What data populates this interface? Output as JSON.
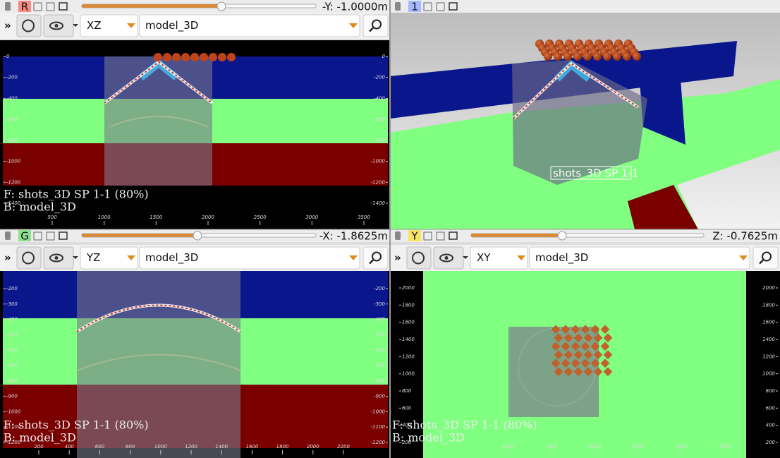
{
  "panels": [
    {
      "badge": "R",
      "position": "-Y: -1.0000m",
      "more": "»",
      "plane": "XZ",
      "model": "model_3D",
      "overlay": [
        "F: shots_3D SP 1-1 (80%)",
        "B: model_3D"
      ],
      "left_ticks": [
        "0",
        "-200",
        "-400",
        "-600",
        "-800",
        "-1000",
        "-1200",
        "-1400"
      ],
      "bottom_ticks": [
        "500",
        "1000",
        "1500",
        "2000",
        "2500",
        "3000",
        "3500"
      ]
    },
    {
      "badge": "1",
      "label": "shots_3D SP 1-1"
    },
    {
      "badge": "G",
      "position": "-X: -1.8625m",
      "more": "»",
      "plane": "YZ",
      "model": "model_3D",
      "overlay": [
        "F: shots_3D SP 1-1 (80%)",
        "B: model_3D"
      ],
      "left_ticks": [
        "-200",
        "-300",
        "-400",
        "-500",
        "-600",
        "-700",
        "-800",
        "-900",
        "-1000",
        "-1100",
        "-1200"
      ],
      "bottom_ticks": [
        "200",
        "400",
        "600",
        "800",
        "1000",
        "1200",
        "1400",
        "1600",
        "1800",
        "2000",
        "2200"
      ]
    },
    {
      "badge": "Y",
      "position": "Z: -0.7625m",
      "more": "»",
      "plane": "XY",
      "model": "model_3D",
      "overlay": [
        "F: shots_3D SP 1-1 (80%)",
        "B: model_3D"
      ],
      "left_ticks": [
        "2000",
        "1800",
        "1600",
        "1400",
        "1200",
        "1000",
        "800",
        "600",
        "400",
        "200"
      ],
      "bottom_ticks": [
        "1000",
        "1500",
        "2000",
        "2500",
        "3000",
        "3500"
      ]
    }
  ]
}
